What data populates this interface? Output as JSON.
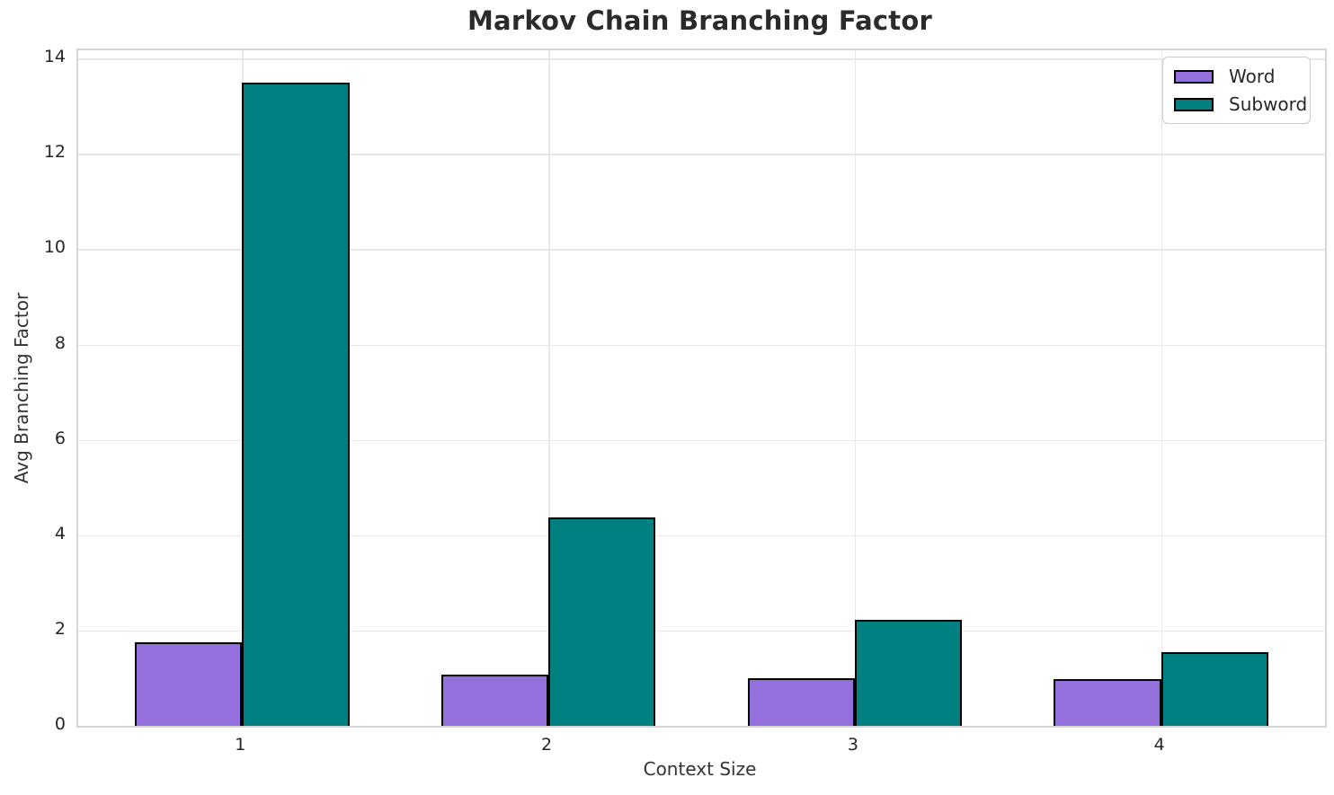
{
  "chart_data": {
    "type": "bar",
    "title": "Markov Chain Branching Factor",
    "xlabel": "Context Size",
    "ylabel": "Avg Branching Factor",
    "categories": [
      "1",
      "2",
      "3",
      "4"
    ],
    "series": [
      {
        "name": "Word",
        "color": "#9370db",
        "values": [
          1.75,
          1.07,
          1.0,
          0.98
        ]
      },
      {
        "name": "Subword",
        "color": "#008080",
        "values": [
          13.5,
          4.38,
          2.22,
          1.55
        ]
      }
    ],
    "yticks": [
      0,
      2,
      4,
      6,
      8,
      10,
      12,
      14
    ],
    "ylim": [
      0,
      14.175
    ],
    "bar_edge_color": "#000000",
    "grid": "on",
    "legend_position": "upper right"
  }
}
